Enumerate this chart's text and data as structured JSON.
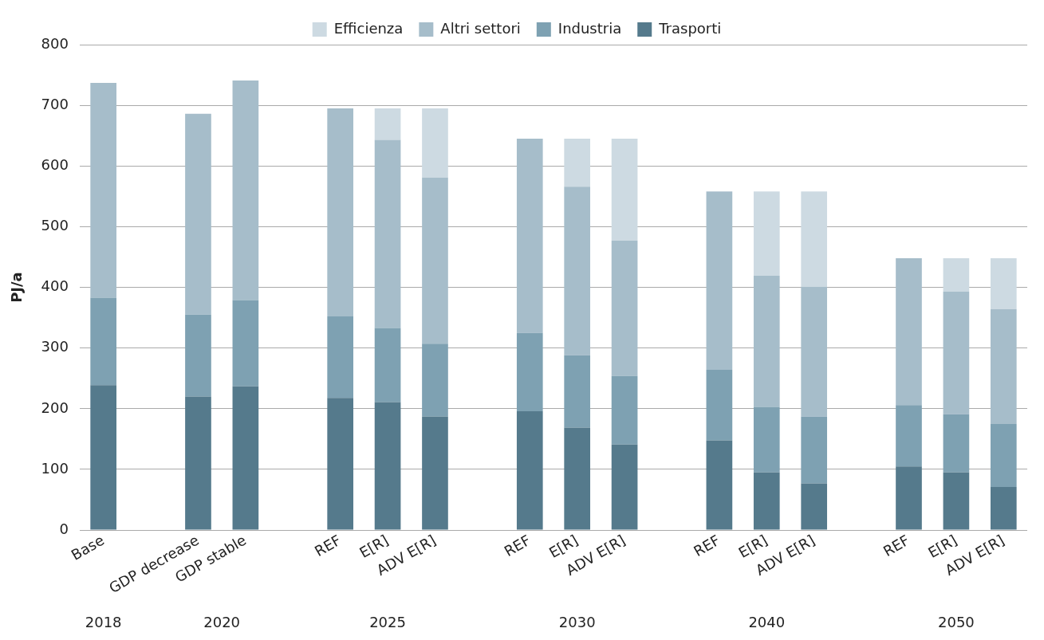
{
  "chart_data": {
    "type": "bar",
    "stacked": true,
    "ylabel": "PJ/a",
    "legend": "top",
    "grid": "y",
    "categories": [
      "Base",
      null,
      "GDP decrease",
      "GDP stable",
      null,
      "REF",
      "E[R]",
      "ADV E[R]",
      null,
      "REF",
      "E[R]",
      "ADV E[R]",
      null,
      "REF",
      "E[R]",
      "ADV E[R]",
      null,
      "REF",
      "E[R]",
      "ADV E[R]"
    ],
    "series": [
      {
        "name": "Trasporti",
        "color": "#557a8c",
        "values": [
          239,
          null,
          220,
          237,
          null,
          218,
          211,
          187,
          null,
          196,
          169,
          141,
          null,
          148,
          95,
          77,
          null,
          105,
          95,
          71
        ]
      },
      {
        "name": "Industria",
        "color": "#7ea1b2",
        "values": [
          144,
          null,
          135,
          142,
          null,
          134,
          122,
          120,
          null,
          129,
          119,
          113,
          null,
          116,
          108,
          110,
          null,
          101,
          96,
          104
        ]
      },
      {
        "name": "Altri settori",
        "color": "#a6bdca",
        "values": [
          354,
          null,
          331,
          362,
          null,
          343,
          310,
          274,
          null,
          320,
          278,
          223,
          null,
          294,
          216,
          214,
          null,
          242,
          202,
          189
        ]
      },
      {
        "name": "Efficienza",
        "color": "#cddae2",
        "values": [
          null,
          null,
          null,
          null,
          null,
          null,
          52,
          114,
          null,
          null,
          79,
          168,
          null,
          null,
          139,
          157,
          null,
          null,
          55,
          84
        ]
      }
    ],
    "ylim": [
      0,
      800
    ],
    "yticks": [
      0,
      100,
      200,
      300,
      400,
      500,
      600,
      700,
      800
    ],
    "annotations": [
      "2018",
      "2020",
      "2025",
      "2030",
      "2040",
      "2050"
    ]
  }
}
